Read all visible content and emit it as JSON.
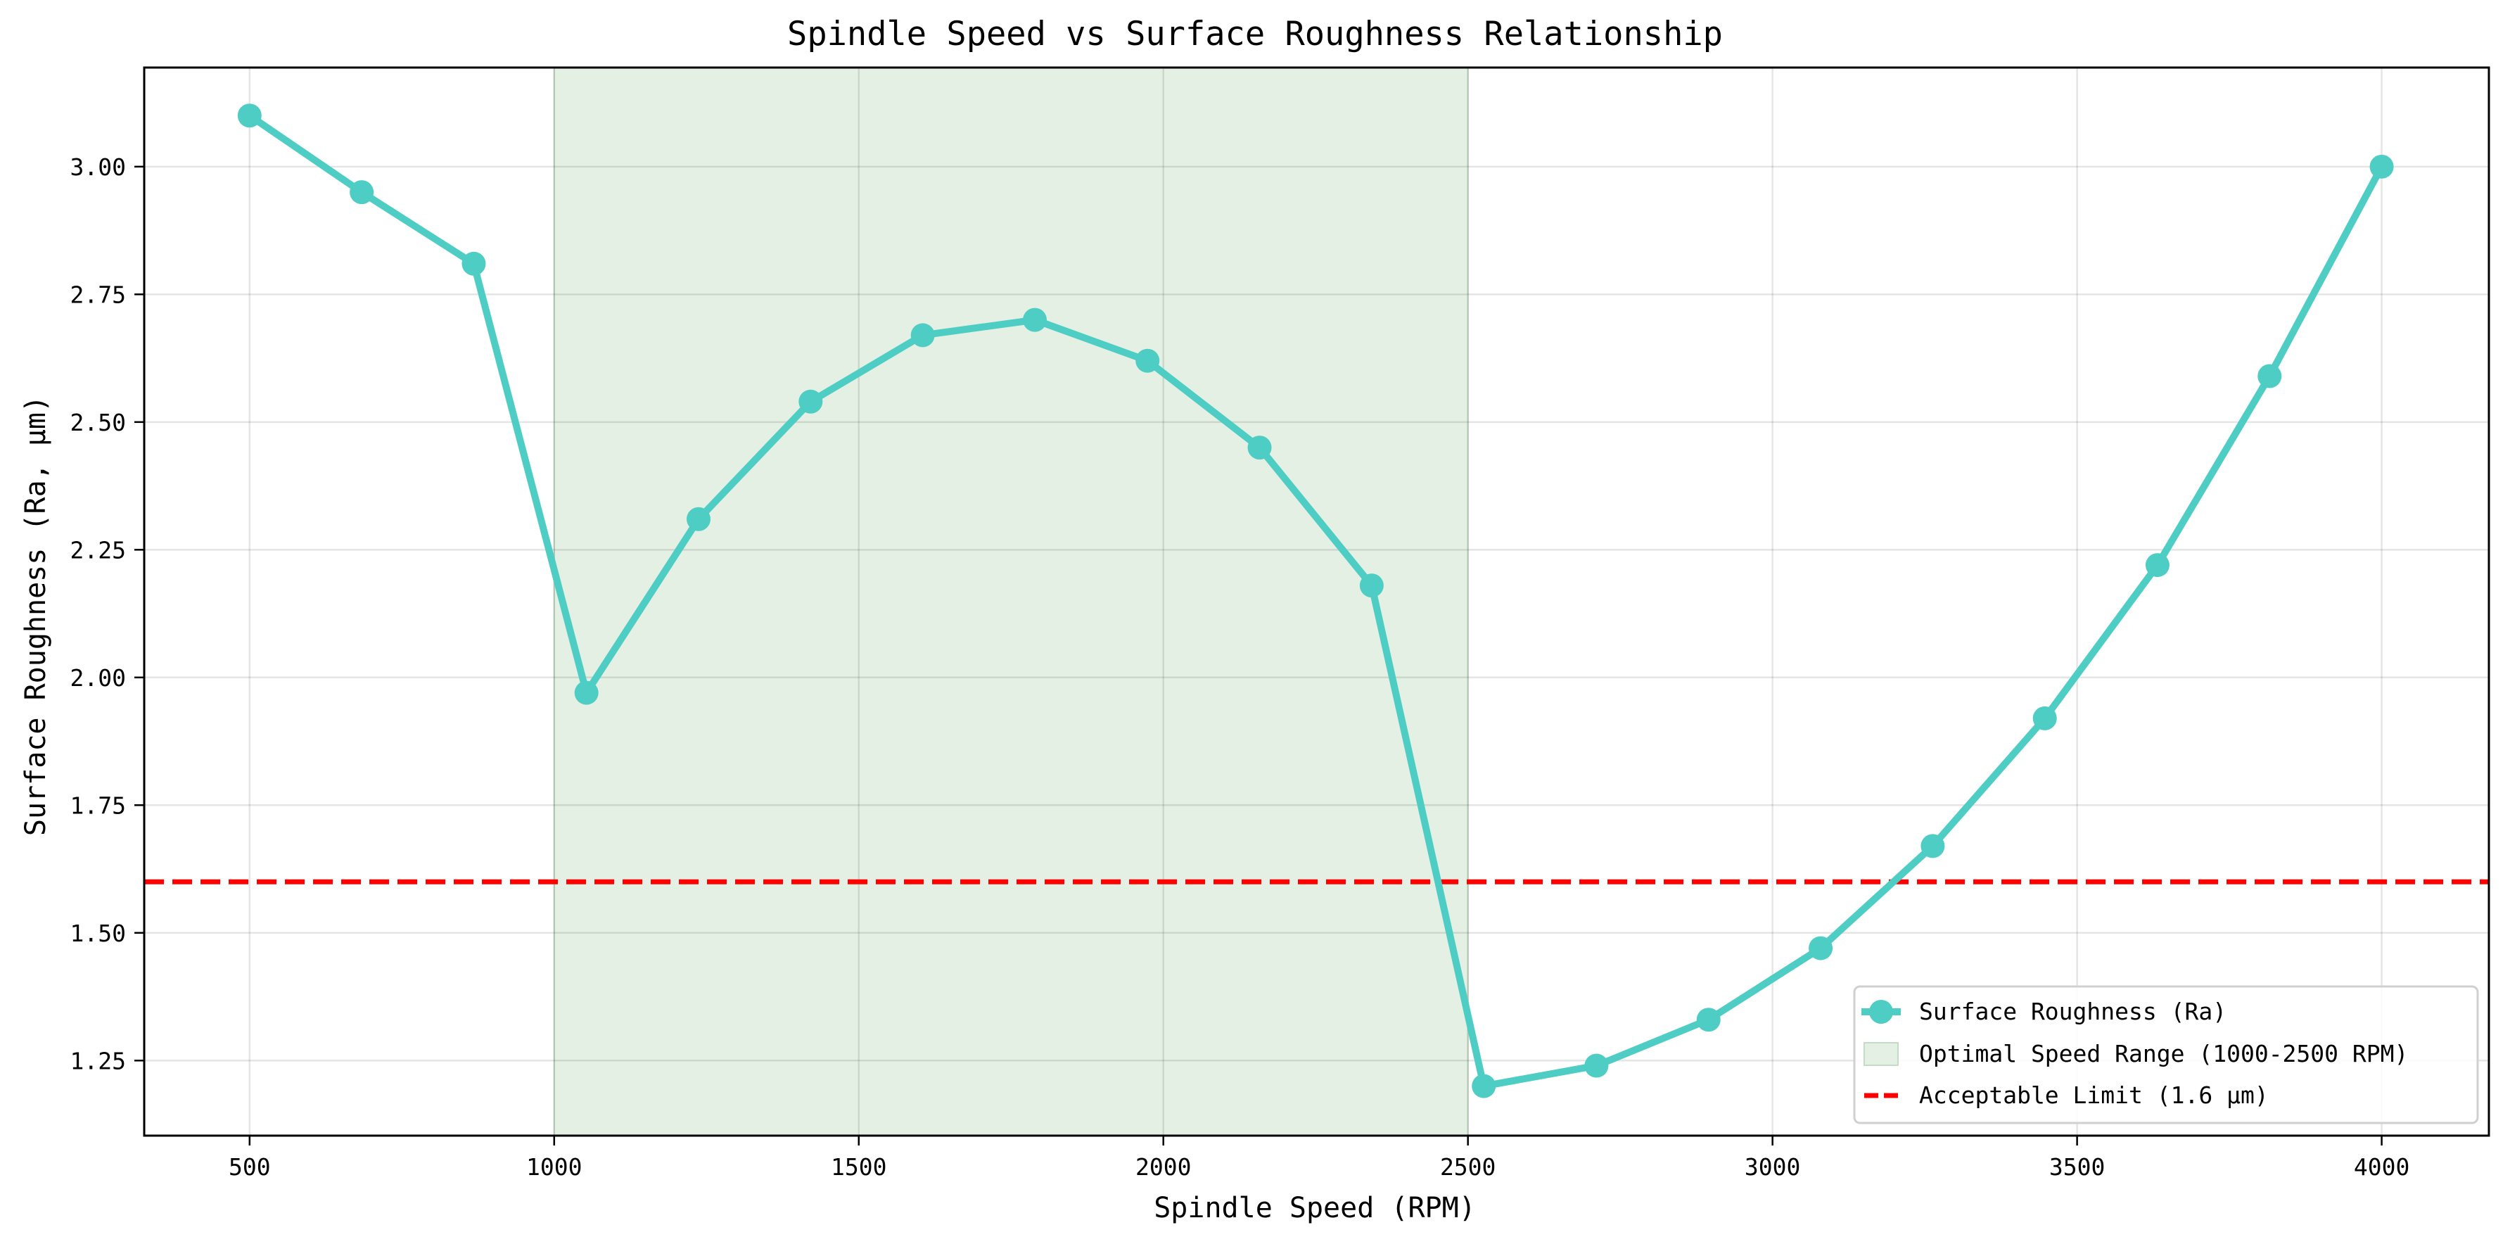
{
  "chart_data": {
    "type": "line",
    "title": "Spindle Speed vs Surface Roughness Relationship",
    "xlabel": "Spindle Speed (RPM)",
    "ylabel": "Surface Roughness (Ra, μm)",
    "xlim": [
      327,
      4176
    ],
    "ylim": [
      1.103,
      3.194
    ],
    "x_ticks": [
      500,
      1000,
      1500,
      2000,
      2500,
      3000,
      3500,
      4000
    ],
    "x_tick_labels": [
      "500",
      "1000",
      "1500",
      "2000",
      "2500",
      "3000",
      "3500",
      "4000"
    ],
    "y_ticks": [
      1.25,
      1.5,
      1.75,
      2.0,
      2.25,
      2.5,
      2.75,
      3.0
    ],
    "y_tick_labels": [
      "1.25",
      "1.50",
      "1.75",
      "2.00",
      "2.25",
      "2.50",
      "2.75",
      "3.00"
    ],
    "grid": true,
    "legend_position": "lower right",
    "x": [
      500,
      684,
      868,
      1053,
      1237,
      1421,
      1605,
      1789,
      1974,
      2158,
      2342,
      2526,
      2711,
      2895,
      3079,
      3263,
      3447,
      3632,
      3816,
      4000
    ],
    "series": [
      {
        "name": "Surface Roughness (Ra)",
        "color": "#4ECDC4",
        "marker": "circle",
        "values": [
          3.1,
          2.95,
          2.81,
          1.97,
          2.31,
          2.54,
          2.67,
          2.7,
          2.62,
          2.45,
          2.18,
          1.2,
          1.24,
          1.33,
          1.47,
          1.67,
          1.92,
          2.22,
          2.59,
          3.0
        ]
      }
    ],
    "shaded_region": {
      "name": "Optimal Speed Range (1000-2500 RPM)",
      "x_start": 1000,
      "x_end": 2500,
      "color": "#E4F0E3"
    },
    "reference_lines": [
      {
        "name": "Acceptable Limit (1.6 μm)",
        "y": 1.6,
        "color": "#FF0000",
        "style": "dashed"
      }
    ],
    "legend": [
      "Surface Roughness (Ra)",
      "Optimal Speed Range (1000-2500 RPM)",
      "Acceptable Limit (1.6 μm)"
    ]
  }
}
